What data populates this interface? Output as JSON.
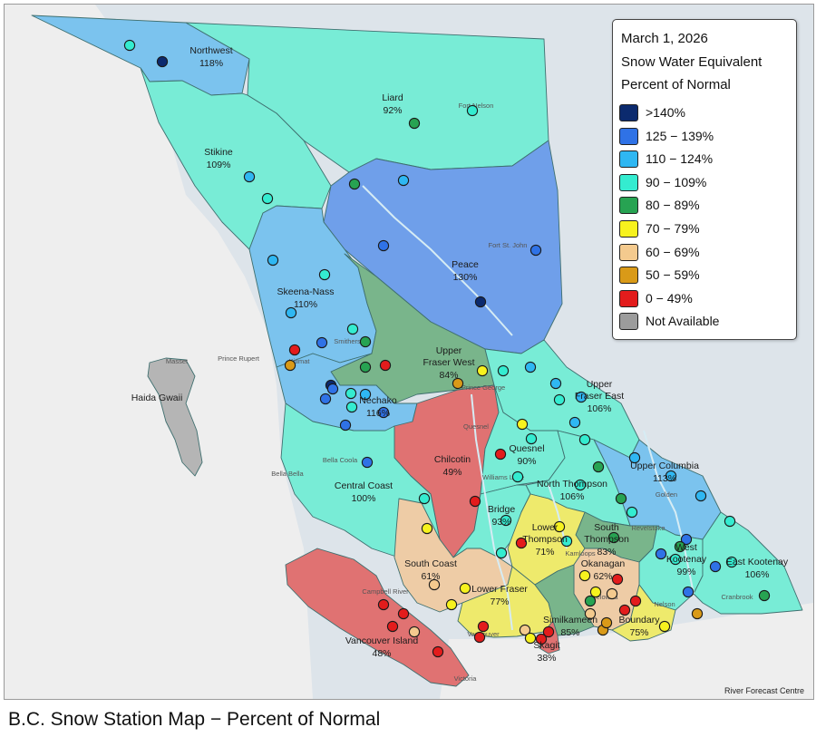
{
  "legend": {
    "date": "March 1, 2026",
    "subtitle": "Snow Water Equivalent",
    "measure": "Percent of Normal",
    "items": [
      {
        "label": ">140%",
        "color": "#0b2a6e"
      },
      {
        "label": "125 − 139%",
        "color": "#2f72e6"
      },
      {
        "label": "110 − 124%",
        "color": "#2fb7f2"
      },
      {
        "label": "90 − 109%",
        "color": "#34ecd0"
      },
      {
        "label": "80 − 89%",
        "color": "#27a352"
      },
      {
        "label": "70 − 79%",
        "color": "#f7f21e"
      },
      {
        "label": "60 − 69%",
        "color": "#f4ca8e"
      },
      {
        "label": "50 − 59%",
        "color": "#d99a18"
      },
      {
        "label": "0 − 49%",
        "color": "#e31c1c"
      },
      {
        "label": "Not Available",
        "color": "#9c9c9c"
      }
    ]
  },
  "regions": [
    {
      "name": "Northwest",
      "percent": "118%",
      "color": "#7bc3ee"
    },
    {
      "name": "Liard",
      "percent": "92%",
      "color": "#78ecd6"
    },
    {
      "name": "Stikine",
      "percent": "109%",
      "color": "#78ecd6"
    },
    {
      "name": "Peace",
      "percent": "130%",
      "color": "#6f9fea"
    },
    {
      "name": "Skeena-Nass",
      "percent": "110%",
      "color": "#7bc3ee"
    },
    {
      "name": "Upper Fraser West",
      "percent": "84%",
      "color": "#79b58b"
    },
    {
      "name": "Nechako",
      "percent": "116%",
      "color": "#7bc3ee"
    },
    {
      "name": "Upper Fraser East",
      "percent": "106%",
      "color": "#78ecd6"
    },
    {
      "name": "Haida Gwaii",
      "percent": "",
      "color": "#b5b5b5"
    },
    {
      "name": "Chilcotin",
      "percent": "49%",
      "color": "#e07272"
    },
    {
      "name": "Quesnel",
      "percent": "90%",
      "color": "#78ecd6"
    },
    {
      "name": "Upper Columbia",
      "percent": "113%",
      "color": "#7bc3ee"
    },
    {
      "name": "Central Coast",
      "percent": "100%",
      "color": "#78ecd6"
    },
    {
      "name": "North Thompson",
      "percent": "106%",
      "color": "#78ecd6"
    },
    {
      "name": "Bridge",
      "percent": "93%",
      "color": "#78ecd6"
    },
    {
      "name": "South Thompson",
      "percent": "83%",
      "color": "#79b58b"
    },
    {
      "name": "Lower Thompson",
      "percent": "71%",
      "color": "#eeea6c"
    },
    {
      "name": "West Kootenay",
      "percent": "99%",
      "color": "#78ecd6"
    },
    {
      "name": "East Kootenay",
      "percent": "106%",
      "color": "#78ecd6"
    },
    {
      "name": "South Coast",
      "percent": "61%",
      "color": "#eecca6"
    },
    {
      "name": "Okanagan",
      "percent": "62%",
      "color": "#eecca6"
    },
    {
      "name": "Lower Fraser",
      "percent": "77%",
      "color": "#eeea6c"
    },
    {
      "name": "Similkameen",
      "percent": "85%",
      "color": "#79b58b"
    },
    {
      "name": "Boundary",
      "percent": "75%",
      "color": "#eeea6c"
    },
    {
      "name": "Skagit",
      "percent": "38%",
      "color": "#e07272"
    },
    {
      "name": "Vancouver Island",
      "percent": "48%",
      "color": "#e07272"
    }
  ],
  "towns": [
    "Fort Nelson",
    "Fort St. John",
    "Prince Rupert",
    "Masset",
    "Kitimat",
    "Smithers",
    "Prince George",
    "Quesnel",
    "Williams Lake",
    "Bella Coola",
    "Bella Bella",
    "Golden",
    "Revelstoke",
    "Kamloops",
    "Kelowna",
    "Nelson",
    "Cranbrook",
    "Campbell River",
    "Vancouver",
    "Victoria"
  ],
  "stations": [
    {
      "region": "Northwest",
      "category": "90 − 109%"
    },
    {
      "region": "Northwest",
      "category": ">140%"
    },
    {
      "region": "Liard",
      "category": "80 − 89%"
    },
    {
      "region": "Liard",
      "category": "90 − 109%"
    },
    {
      "region": "Stikine",
      "category": "110 − 124%"
    },
    {
      "region": "Stikine",
      "category": "90 − 109%"
    },
    {
      "region": "Stikine",
      "category": "80 − 89%"
    },
    {
      "region": "Stikine",
      "category": "110 − 124%"
    },
    {
      "region": "Skeena-Nass",
      "category": "110 − 124%"
    },
    {
      "region": "Skeena-Nass",
      "category": "110 − 124%"
    },
    {
      "region": "Skeena-Nass",
      "category": "90 − 109%"
    },
    {
      "region": "Skeena-Nass",
      "category": "125 − 139%"
    },
    {
      "region": "Skeena-Nass",
      "category": "90 − 109%"
    },
    {
      "region": "Skeena-Nass",
      "category": "125 − 139%"
    },
    {
      "region": "Skeena-Nass",
      "category": "0 − 49%"
    },
    {
      "region": "Skeena-Nass",
      "category": "50 − 59%"
    },
    {
      "region": "Peace",
      "category": "125 − 139%"
    },
    {
      "region": "Peace",
      "category": ">140%"
    },
    {
      "region": "Peace",
      "category": ">140%"
    },
    {
      "region": "Peace",
      "category": "125 − 139%"
    },
    {
      "region": "Upper Fraser West",
      "category": "80 − 89%"
    },
    {
      "region": "Upper Fraser West",
      "category": "0 − 49%"
    },
    {
      "region": "Upper Fraser West",
      "category": "80 − 89%"
    },
    {
      "region": "Upper Fraser West",
      "category": "50 − 59%"
    },
    {
      "region": "Nechako",
      "category": "125 − 139%"
    },
    {
      "region": "Nechako",
      "category": "90 − 109%"
    },
    {
      "region": "Nechako",
      "category": "110 − 124%"
    },
    {
      "region": "Nechako",
      "category": "125 − 139%"
    },
    {
      "region": "Nechako",
      "category": "90 − 109%"
    },
    {
      "region": "Nechako",
      "category": "125 − 139%"
    },
    {
      "region": "Upper Fraser East",
      "category": "70 − 79%"
    },
    {
      "region": "Upper Fraser East",
      "category": "90 − 109%"
    },
    {
      "region": "Upper Fraser East",
      "category": "110 − 124%"
    },
    {
      "region": "Upper Fraser East",
      "category": "110 − 124%"
    },
    {
      "region": "Upper Fraser East",
      "category": "90 − 109%"
    },
    {
      "region": "Upper Fraser East",
      "category": "110 − 124%"
    },
    {
      "region": "Quesnel",
      "category": "70 − 79%"
    },
    {
      "region": "Quesnel",
      "category": "90 − 109%"
    },
    {
      "region": "Quesnel",
      "category": "0 − 49%"
    },
    {
      "region": "Quesnel",
      "category": "90 − 109%"
    },
    {
      "region": "Chilcotin",
      "category": "0 − 49%"
    },
    {
      "region": "Central Coast",
      "category": "125 − 139%"
    },
    {
      "region": "Central Coast",
      "category": "90 − 109%"
    },
    {
      "region": "Bridge",
      "category": "90 − 109%"
    },
    {
      "region": "Bridge",
      "category": "0 − 49%"
    },
    {
      "region": "Bridge",
      "category": "90 − 109%"
    },
    {
      "region": "North Thompson",
      "category": "110 − 124%"
    },
    {
      "region": "North Thompson",
      "category": "90 − 109%"
    },
    {
      "region": "North Thompson",
      "category": "80 − 89%"
    },
    {
      "region": "North Thompson",
      "category": "90 − 109%"
    },
    {
      "region": "Upper Columbia",
      "category": "110 − 124%"
    },
    {
      "region": "Upper Columbia",
      "category": "110 − 124%"
    },
    {
      "region": "Upper Columbia",
      "category": "110 − 124%"
    },
    {
      "region": "Upper Columbia",
      "category": "125 − 139%"
    },
    {
      "region": "Upper Columbia",
      "category": "90 − 109%"
    },
    {
      "region": "South Thompson",
      "category": "80 − 89%"
    },
    {
      "region": "South Thompson",
      "category": "90 − 109%"
    },
    {
      "region": "South Thompson",
      "category": "80 − 89%"
    },
    {
      "region": "Lower Thompson",
      "category": "70 − 79%"
    },
    {
      "region": "Lower Thompson",
      "category": "90 − 109%"
    },
    {
      "region": "West Kootenay",
      "category": "125 − 139%"
    },
    {
      "region": "West Kootenay",
      "category": "80 − 89%"
    },
    {
      "region": "West Kootenay",
      "category": "90 − 109%"
    },
    {
      "region": "West Kootenay",
      "category": "125 − 139%"
    },
    {
      "region": "West Kootenay",
      "category": "50 − 59%"
    },
    {
      "region": "East Kootenay",
      "category": "90 − 109%"
    },
    {
      "region": "East Kootenay",
      "category": "80 − 89%"
    },
    {
      "region": "East Kootenay",
      "category": "125 − 139%"
    },
    {
      "region": "Okanagan",
      "category": "70 − 79%"
    },
    {
      "region": "Okanagan",
      "category": "70 − 79%"
    },
    {
      "region": "Okanagan",
      "category": "0 − 49%"
    },
    {
      "region": "Okanagan",
      "category": "60 − 69%"
    },
    {
      "region": "Okanagan",
      "category": "50 − 59%"
    },
    {
      "region": "Okanagan",
      "category": "0 − 49%"
    },
    {
      "region": "Okanagan",
      "category": "60 − 69%"
    },
    {
      "region": "Boundary",
      "category": "70 − 79%"
    },
    {
      "region": "Boundary",
      "category": "0 − 49%"
    },
    {
      "region": "Similkameen",
      "category": "80 − 89%"
    },
    {
      "region": "Similkameen",
      "category": "50 − 59%"
    },
    {
      "region": "Skagit",
      "category": "0 − 49%"
    },
    {
      "region": "Skagit",
      "category": "0 − 49%"
    },
    {
      "region": "Lower Fraser",
      "category": "70 − 79%"
    },
    {
      "region": "Lower Fraser",
      "category": "0 − 49%"
    },
    {
      "region": "Lower Fraser",
      "category": "60 − 69%"
    },
    {
      "region": "Lower Fraser",
      "category": "70 − 79%"
    },
    {
      "region": "Lower Fraser",
      "category": "0 − 49%"
    },
    {
      "region": "South Coast",
      "category": "70 − 79%"
    },
    {
      "region": "South Coast",
      "category": "60 − 69%"
    },
    {
      "region": "South Coast",
      "category": "70 − 79%"
    },
    {
      "region": "Vancouver Island",
      "category": "0 − 49%"
    },
    {
      "region": "Vancouver Island",
      "category": "0 − 49%"
    },
    {
      "region": "Vancouver Island",
      "category": "0 − 49%"
    },
    {
      "region": "Vancouver Island",
      "category": "60 − 69%"
    },
    {
      "region": "Vancouver Island",
      "category": "0 − 49%"
    }
  ],
  "credit": "River Forecast Centre",
  "caption": "B.C. Snow Station Map − Percent of Normal"
}
